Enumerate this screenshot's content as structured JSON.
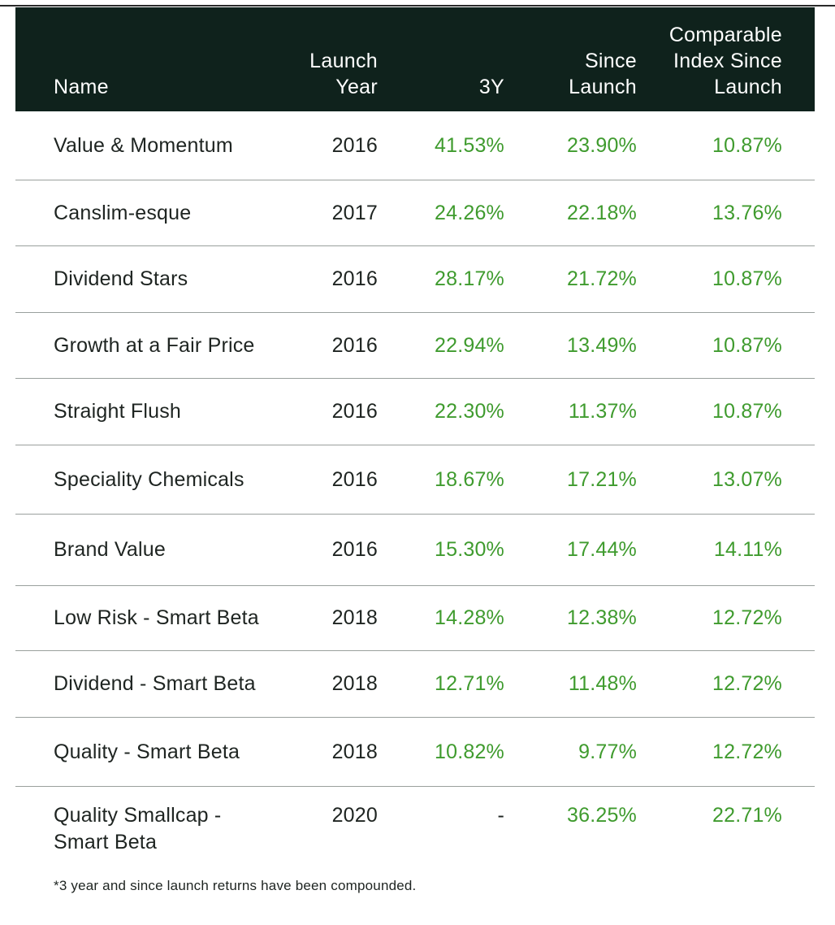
{
  "table": {
    "headers": {
      "name": "Name",
      "launch_year": "Launch\nYear",
      "three_year": "3Y",
      "since_launch": "Since\nLaunch",
      "comparable_index": "Comparable\nIndex Since\nLaunch"
    },
    "rows": [
      {
        "name": "Value & Momentum",
        "launch_year": "2016",
        "three_year": "41.53%",
        "since_launch": "23.90%",
        "comparable_index": "10.87%"
      },
      {
        "name": "Canslim-esque",
        "launch_year": "2017",
        "three_year": "24.26%",
        "since_launch": "22.18%",
        "comparable_index": "13.76%"
      },
      {
        "name": "Dividend Stars",
        "launch_year": "2016",
        "three_year": "28.17%",
        "since_launch": "21.72%",
        "comparable_index": "10.87%"
      },
      {
        "name": "Growth at a Fair Price",
        "launch_year": "2016",
        "three_year": "22.94%",
        "since_launch": "13.49%",
        "comparable_index": "10.87%"
      },
      {
        "name": "Straight Flush",
        "launch_year": "2016",
        "three_year": "22.30%",
        "since_launch": "11.37%",
        "comparable_index": "10.87%"
      },
      {
        "name": "Speciality Chemicals",
        "launch_year": "2016",
        "three_year": "18.67%",
        "since_launch": "17.21%",
        "comparable_index": "13.07%"
      },
      {
        "name": "Brand Value",
        "launch_year": "2016",
        "three_year": "15.30%",
        "since_launch": "17.44%",
        "comparable_index": "14.11%"
      },
      {
        "name": "Low Risk - Smart Beta",
        "launch_year": "2018",
        "three_year": "14.28%",
        "since_launch": "12.38%",
        "comparable_index": "12.72%"
      },
      {
        "name": "Dividend - Smart Beta",
        "launch_year": "2018",
        "three_year": "12.71%",
        "since_launch": "11.48%",
        "comparable_index": "12.72%"
      },
      {
        "name": "Quality - Smart Beta",
        "launch_year": "2018",
        "three_year": "10.82%",
        "since_launch": "9.77%",
        "comparable_index": "12.72%"
      },
      {
        "name": "Quality Smallcap -\nSmart Beta",
        "launch_year": "2020",
        "three_year": "-",
        "since_launch": "36.25%",
        "comparable_index": "22.71%"
      }
    ]
  },
  "footnote": "*3 year and since launch returns have been compounded.",
  "colors": {
    "header_bg": "#0f221c",
    "positive_value": "#3f9b2e",
    "text": "#1e2421",
    "row_divider": "#9aa09d"
  }
}
